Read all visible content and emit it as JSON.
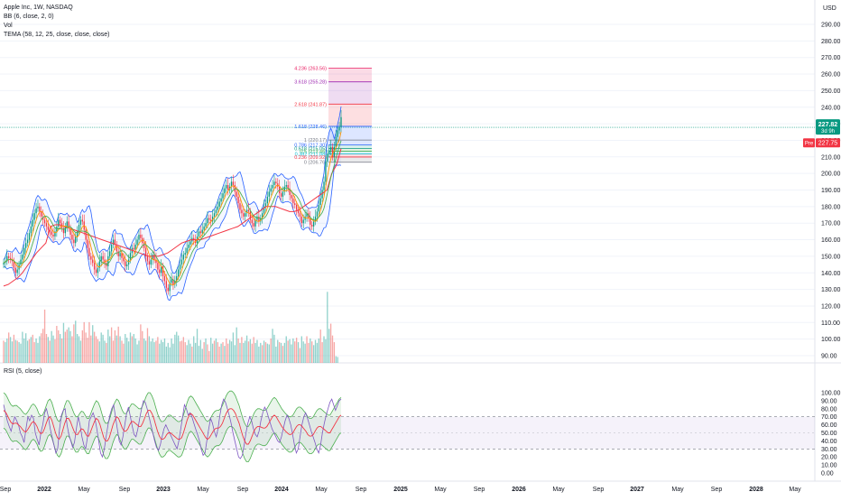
{
  "header": {
    "symbol_line": "Apple Inc, 1W, NASDAQ",
    "indicators": [
      "BB (6, close, 2, 0)",
      "Vol",
      "TEMA (58, 12, 25, close, close, close)"
    ],
    "currency": "USD"
  },
  "rsi_pane": {
    "title": "RSI (5, close)"
  },
  "price_tags": {
    "last_price": "227.82",
    "countdown": "3d 9h",
    "pre_label": "Pre",
    "pre_price": "227.75"
  },
  "chart_data": [
    {
      "type": "candlestick",
      "title": "Apple Inc, 1W, NASDAQ",
      "ylabel": "USD",
      "ylim": [
        85,
        300
      ],
      "y_ticks": [
        "90.00",
        "100.00",
        "110.00",
        "120.00",
        "130.00",
        "140.00",
        "150.00",
        "160.00",
        "170.00",
        "180.00",
        "190.00",
        "200.00",
        "210.00",
        "220.00",
        "230.00",
        "240.00",
        "250.00",
        "260.00",
        "270.00",
        "280.00",
        "290.00"
      ],
      "x_ticks": [
        "Sep",
        "2022",
        "May",
        "Sep",
        "2023",
        "May",
        "Sep",
        "2024",
        "May",
        "Sep",
        "2025",
        "May",
        "Sep",
        "2026",
        "May",
        "Sep",
        "2027",
        "May",
        "Sep",
        "2028",
        "May"
      ],
      "close_approx": [
        146,
        147,
        150,
        149,
        148,
        147,
        143,
        140,
        142,
        145,
        148,
        151,
        155,
        158,
        160,
        164,
        168,
        172,
        176,
        179,
        180,
        177,
        174,
        172,
        170,
        168,
        166,
        165,
        163,
        162,
        165,
        168,
        172,
        170,
        167,
        164,
        168,
        171,
        167,
        163,
        160,
        158,
        162,
        165,
        169,
        172,
        171,
        166,
        160,
        155,
        150,
        148,
        146,
        142,
        140,
        143,
        147,
        150,
        148,
        146,
        144,
        150,
        153,
        157,
        160,
        157,
        153,
        150,
        152,
        149,
        147,
        144,
        145,
        148,
        152,
        155,
        154,
        157,
        160,
        163,
        161,
        158,
        155,
        150,
        147,
        145,
        148,
        151,
        148,
        146,
        142,
        140,
        144,
        138,
        135,
        131,
        129,
        134,
        136,
        133,
        135,
        138,
        142,
        145,
        148,
        151,
        152,
        155,
        157,
        159,
        161,
        160,
        158,
        162,
        165,
        164,
        166,
        168,
        170,
        173,
        172,
        171,
        174,
        176,
        178,
        180,
        183,
        185,
        188,
        191,
        193,
        190,
        192,
        195,
        193,
        189,
        186,
        182,
        178,
        176,
        174,
        176,
        178,
        177,
        172,
        170,
        168,
        172,
        174,
        171,
        173,
        176,
        180,
        182,
        186,
        189,
        191,
        193,
        195,
        194,
        192,
        188,
        186,
        189,
        192,
        193,
        191,
        187,
        185,
        182,
        181,
        178,
        176,
        174,
        170,
        172,
        174,
        176,
        173,
        169,
        168,
        171,
        174,
        177,
        181,
        185,
        190,
        195,
        207,
        212,
        214,
        216,
        210,
        216,
        222,
        226,
        228,
        234
      ],
      "tema_approx": [
        140,
        141,
        143,
        145,
        148,
        152,
        156,
        160,
        163,
        166,
        168,
        169,
        169,
        168,
        167,
        166,
        165,
        164,
        163,
        162,
        161,
        160,
        159,
        158,
        157,
        156,
        155,
        154,
        153,
        152,
        151,
        150,
        150,
        150,
        151,
        152,
        154,
        156,
        158,
        159,
        160,
        160,
        160,
        161,
        162,
        163,
        164,
        165,
        166,
        167,
        168,
        170,
        172,
        174,
        176,
        178,
        180,
        180,
        180,
        179,
        178,
        177,
        177,
        178,
        180,
        182,
        184,
        186,
        188,
        190,
        200,
        205,
        215
      ]
    },
    {
      "type": "bar",
      "title": "Vol",
      "values_relative": [
        0.3,
        0.28,
        0.33,
        0.41,
        0.35,
        0.29,
        0.38,
        0.31,
        0.3,
        0.28,
        0.26,
        0.42,
        0.33,
        0.4,
        0.3,
        0.32,
        0.35,
        0.38,
        0.28,
        0.33,
        0.27,
        0.36,
        0.4,
        0.46,
        0.72,
        0.39,
        0.35,
        0.3,
        0.43,
        0.37,
        0.32,
        0.5,
        0.44,
        0.39,
        0.33,
        0.54,
        0.42,
        0.45,
        0.48,
        0.43,
        0.36,
        0.52,
        0.57,
        0.39,
        0.36,
        0.3,
        0.44,
        0.55,
        0.41,
        0.34,
        0.55,
        0.37,
        0.51,
        0.42,
        0.36,
        0.32,
        0.29,
        0.41,
        0.38,
        0.3,
        0.27,
        0.45,
        0.36,
        0.48,
        0.3,
        0.44,
        0.37,
        0.49,
        0.36,
        0.3,
        0.26,
        0.39,
        0.34,
        0.29,
        0.41,
        0.36,
        0.39,
        0.33,
        0.25,
        0.3,
        0.52,
        0.43,
        0.33,
        0.3,
        0.47,
        0.36,
        0.29,
        0.33,
        0.28,
        0.3,
        0.35,
        0.26,
        0.31,
        0.28,
        0.33,
        0.22,
        0.27,
        0.21,
        0.33,
        0.26,
        0.38,
        0.42,
        0.37,
        0.29,
        0.3,
        0.35,
        0.28,
        0.24,
        0.31,
        0.26,
        0.22,
        0.36,
        0.27,
        0.46,
        0.23,
        0.31,
        0.19,
        0.28,
        0.33,
        0.25,
        0.16,
        0.34,
        0.26,
        0.3,
        0.33,
        0.28,
        0.22,
        0.26,
        0.28,
        0.23,
        0.33,
        0.26,
        0.31,
        0.29,
        0.41,
        0.24,
        0.48,
        0.33,
        0.27,
        0.35,
        0.27,
        0.3,
        0.37,
        0.29,
        0.32,
        0.26,
        0.35,
        0.27,
        0.31,
        0.22,
        0.27,
        0.24,
        0.3,
        0.28,
        0.26,
        0.25,
        0.33,
        0.46,
        0.38,
        0.22,
        0.31,
        0.28,
        0.27,
        0.23,
        0.27,
        0.36,
        0.3,
        0.32,
        0.25,
        0.33,
        0.29,
        0.34,
        0.28,
        0.2,
        0.36,
        0.29,
        0.26,
        0.36,
        0.27,
        0.33,
        0.29,
        0.24,
        0.31,
        0.27,
        0.33,
        0.45,
        0.28,
        0.36,
        0.32,
        0.96,
        0.46,
        0.53,
        0.37,
        0.28,
        0.09,
        0.08
      ],
      "up": [
        0,
        1,
        1,
        0,
        1,
        1,
        0,
        1,
        0,
        1,
        1,
        1,
        1,
        1,
        1,
        0,
        1,
        0,
        0,
        1,
        1,
        1,
        0,
        0,
        0,
        0,
        1,
        0,
        1,
        1,
        0,
        0,
        0,
        1,
        0,
        1,
        0,
        0,
        1,
        1,
        0,
        0,
        1,
        1,
        1,
        1,
        0,
        0,
        0,
        0,
        0,
        0,
        1,
        0,
        0,
        0,
        1,
        1,
        1,
        1,
        0,
        1,
        1,
        0,
        0,
        0,
        1,
        0,
        1,
        0,
        0,
        1,
        1,
        1,
        1,
        0,
        1,
        1,
        1,
        1,
        0,
        0,
        1,
        1,
        0,
        1,
        1,
        1,
        1,
        0,
        0,
        1,
        1,
        1,
        1,
        1,
        1,
        1,
        1,
        1,
        1,
        1,
        1,
        0,
        0,
        0,
        0,
        1,
        1,
        1,
        0,
        1,
        1,
        1,
        1,
        1,
        1,
        0,
        1,
        0,
        0,
        1,
        1,
        0,
        1,
        0,
        0,
        1,
        0,
        1,
        0,
        0,
        1,
        1,
        1,
        1,
        1,
        0,
        1,
        0,
        1,
        1,
        1,
        0,
        1,
        0,
        0,
        1,
        1,
        1,
        1,
        0,
        1,
        0,
        1,
        1,
        0,
        1,
        1,
        1,
        1,
        0,
        1,
        0,
        1,
        1,
        0,
        1,
        1,
        1,
        0,
        0,
        1,
        0,
        1,
        1,
        1,
        0,
        0,
        1,
        0,
        1,
        1,
        1,
        1,
        0,
        0,
        1,
        1,
        1,
        1,
        0,
        0,
        0,
        1,
        1
      ]
    },
    {
      "type": "fibonacci",
      "levels": [
        {
          "ratio": "4.236",
          "price": 263.56,
          "label": "4.236 (263.56)",
          "color": "#e91e63"
        },
        {
          "ratio": "3.618",
          "price": 255.28,
          "label": "3.618 (255.28)",
          "color": "#9c27b0"
        },
        {
          "ratio": "2.618",
          "price": 241.87,
          "label": "2.618 (241.87)",
          "color": "#f23645"
        },
        {
          "ratio": "1.618",
          "price": 228.46,
          "label": "1.618 (228.46)",
          "color": "#2962ff"
        },
        {
          "ratio": "1",
          "price": 220.17,
          "label": "1 (220.17)",
          "color": "#787b86"
        },
        {
          "ratio": "0.786",
          "price": 217.3,
          "label": "0.786 (217.30)",
          "color": "#2962ff"
        },
        {
          "ratio": "0.618",
          "price": 215.05,
          "label": "0.618 (215.05)",
          "color": "#089981"
        },
        {
          "ratio": "0.5",
          "price": 213.46,
          "label": "0.5 (213.46)",
          "color": "#4caf50"
        },
        {
          "ratio": "0.382",
          "price": 211.88,
          "label": "0.382 (211.88)",
          "color": "#00bcd4"
        },
        {
          "ratio": "0.236",
          "price": 209.92,
          "label": "0.236 (209.92)",
          "color": "#f23645"
        },
        {
          "ratio": "0",
          "price": 206.76,
          "label": "0 (206.76)",
          "color": "#787b86"
        }
      ]
    },
    {
      "type": "line",
      "title": "RSI (5, close)",
      "ylim": [
        0,
        105
      ],
      "y_ticks": [
        "0.00",
        "10.00",
        "20.00",
        "30.00",
        "40.00",
        "50.00",
        "60.00",
        "70.00",
        "80.00",
        "90.00",
        "100.00"
      ],
      "band": [
        30,
        70
      ],
      "values": [
        85,
        75,
        65,
        58,
        52,
        62,
        70,
        65,
        60,
        50,
        45,
        38,
        55,
        70,
        65,
        72,
        68,
        50,
        42,
        35,
        50,
        60,
        75,
        80,
        70,
        55,
        45,
        35,
        25,
        30,
        55,
        72,
        78,
        80,
        60,
        48,
        40,
        32,
        38,
        55,
        70,
        60,
        45,
        35,
        30,
        45,
        65,
        70,
        75,
        68,
        55,
        40,
        25,
        20,
        30,
        45,
        60,
        72,
        80,
        85,
        70,
        55,
        40,
        35,
        45,
        60,
        75,
        82,
        70,
        58,
        48,
        45,
        55,
        68,
        80,
        90,
        88,
        80,
        70,
        60,
        50,
        40,
        32,
        28,
        35,
        45,
        55,
        60,
        55,
        50,
        45,
        40,
        35,
        30,
        40,
        55,
        70,
        85,
        80,
        72,
        75,
        70,
        62,
        55,
        48,
        40,
        30,
        22,
        25,
        40,
        55,
        68,
        62,
        52,
        45,
        55,
        72,
        85,
        92,
        88,
        80,
        72,
        62,
        50,
        40,
        30,
        20,
        18,
        22,
        35,
        50,
        62,
        70,
        65,
        55,
        48,
        45,
        52,
        65,
        75,
        82,
        78,
        70,
        62,
        55,
        50,
        45,
        40,
        38,
        45,
        55,
        65,
        72,
        68,
        60,
        48,
        35,
        25,
        30,
        45,
        60,
        70,
        75,
        68,
        60,
        52,
        45,
        38,
        30,
        25,
        35,
        50,
        62,
        72,
        80,
        88,
        92,
        85,
        78,
        84,
        90,
        92
      ],
      "ma_values": [
        78,
        76,
        72,
        67,
        63,
        61,
        62,
        62,
        60,
        58,
        55,
        52,
        51,
        54,
        58,
        62,
        64,
        62,
        58,
        52,
        49,
        50,
        55,
        62,
        68,
        70,
        66,
        58,
        50,
        44,
        42,
        46,
        54,
        62,
        68,
        68,
        64,
        58,
        52,
        48,
        48,
        52,
        55,
        54,
        50,
        46,
        46,
        52,
        58,
        64,
        68,
        66,
        60,
        52,
        44,
        40,
        40,
        44,
        52,
        60,
        66,
        70,
        68,
        62,
        56,
        52,
        52,
        55,
        60,
        64,
        64,
        62,
        60,
        58,
        58,
        62,
        68,
        74,
        78,
        78,
        74,
        68,
        60,
        52,
        46,
        42,
        42,
        44,
        48,
        50,
        50,
        48,
        46,
        44,
        42,
        42,
        44,
        50,
        58,
        66,
        72,
        74,
        72,
        68,
        64,
        60,
        56,
        52,
        48,
        44,
        42,
        44,
        48,
        52,
        55,
        56,
        56,
        58,
        62,
        68,
        74,
        78,
        80,
        80,
        78,
        74,
        68,
        62,
        54,
        46,
        40,
        36,
        36,
        40,
        46,
        52,
        56,
        58,
        58,
        57,
        56,
        56,
        58,
        62,
        66,
        70,
        72,
        70,
        66,
        62,
        58,
        55,
        52,
        50,
        48,
        48,
        50,
        54,
        58,
        60,
        60,
        58,
        55,
        52,
        48,
        46,
        46,
        48,
        52,
        56,
        58,
        58,
        56,
        54,
        52,
        50,
        50,
        54,
        58,
        62,
        66,
        70,
        72
      ]
    }
  ]
}
